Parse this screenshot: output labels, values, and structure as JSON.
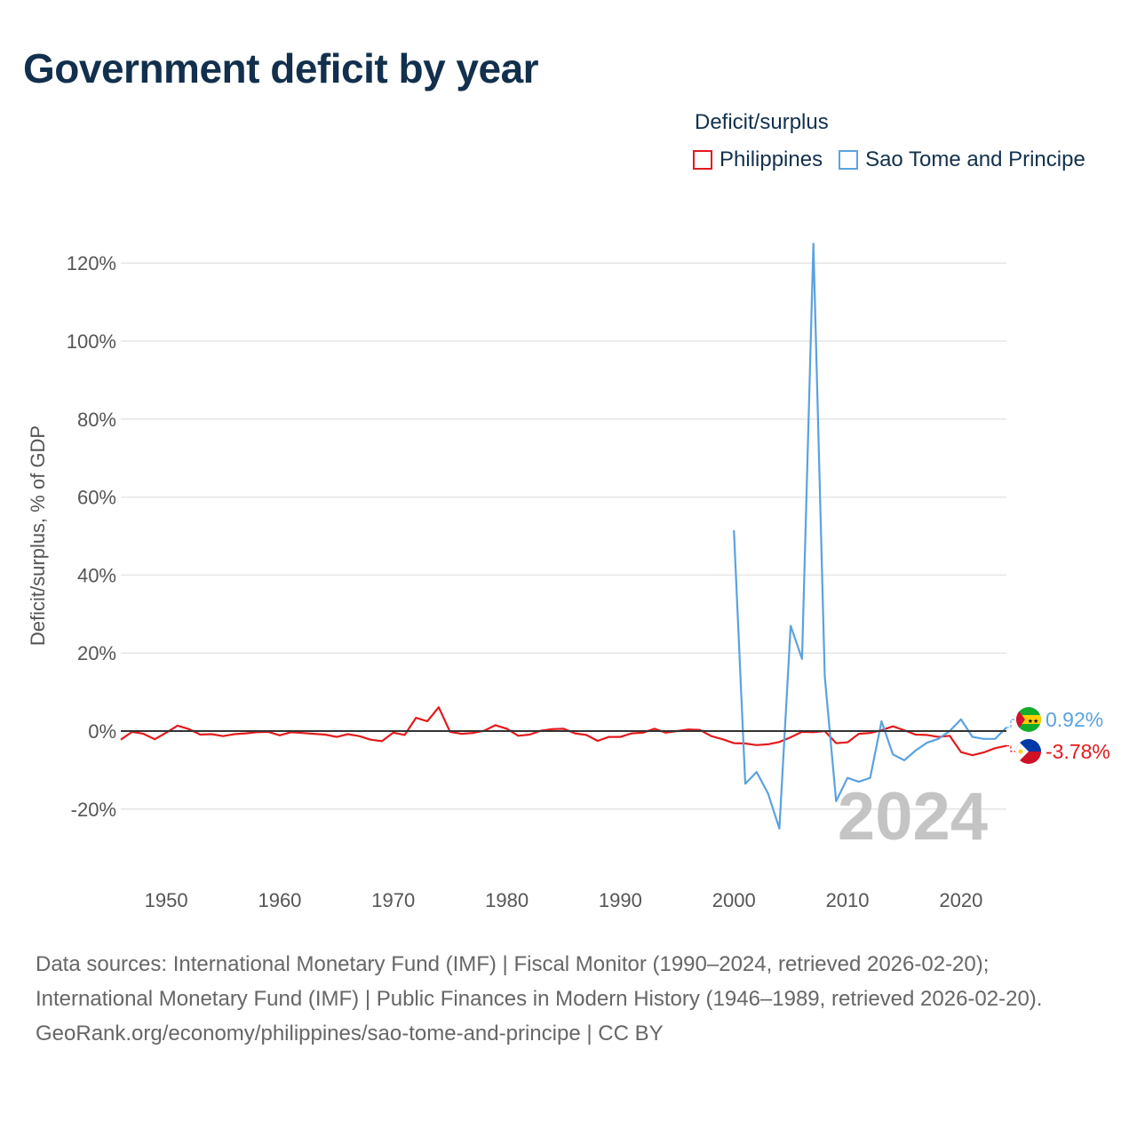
{
  "title": "Government deficit by year",
  "legend": {
    "title": "Deficit/surplus",
    "items": [
      {
        "name": "Philippines",
        "color": "#e31a1c"
      },
      {
        "name": "Sao Tome and Principe",
        "color": "#5aa2e0"
      }
    ]
  },
  "year_watermark": "2024",
  "footer": {
    "sources": "Data sources: International Monetary Fund (IMF) | Fiscal Monitor (1990–2024, retrieved 2026-02-20); International Monetary Fund (IMF) | Public Finances in Modern History (1946–1989, retrieved 2026-02-20).",
    "credit": "GeoRank.org/economy/philippines/sao-tome-and-principe | CC BY"
  },
  "chart_data": {
    "type": "line",
    "title": "Government deficit by year",
    "xlabel": "",
    "ylabel": "Deficit/surplus, % of GDP",
    "xlim": [
      1946,
      2024
    ],
    "ylim": [
      -30,
      130
    ],
    "x_ticks": [
      1950,
      1960,
      1970,
      1980,
      1990,
      2000,
      2010,
      2020
    ],
    "y_ticks": [
      -20,
      0,
      20,
      40,
      60,
      80,
      100,
      120
    ],
    "y_tick_labels": [
      "-20%",
      "0%",
      "20%",
      "40%",
      "60%",
      "80%",
      "100%",
      "120%"
    ],
    "grid": true,
    "series": [
      {
        "name": "Philippines",
        "color": "#e31a1c",
        "end_label": "-3.78%",
        "points": [
          [
            1946,
            -2.2
          ],
          [
            1947,
            -0.2
          ],
          [
            1948,
            -0.7
          ],
          [
            1949,
            -2.1
          ],
          [
            1950,
            -0.4
          ],
          [
            1951,
            1.4
          ],
          [
            1952,
            0.5
          ],
          [
            1953,
            -0.9
          ],
          [
            1954,
            -0.8
          ],
          [
            1955,
            -1.3
          ],
          [
            1956,
            -0.8
          ],
          [
            1957,
            -0.6
          ],
          [
            1958,
            -0.3
          ],
          [
            1959,
            -0.2
          ],
          [
            1960,
            -1.1
          ],
          [
            1961,
            -0.3
          ],
          [
            1962,
            -0.5
          ],
          [
            1963,
            -0.7
          ],
          [
            1964,
            -0.9
          ],
          [
            1965,
            -1.5
          ],
          [
            1966,
            -0.8
          ],
          [
            1967,
            -1.3
          ],
          [
            1968,
            -2.2
          ],
          [
            1969,
            -2.6
          ],
          [
            1970,
            -0.4
          ],
          [
            1971,
            -1.0
          ],
          [
            1972,
            3.4
          ],
          [
            1973,
            2.5
          ],
          [
            1974,
            6.1
          ],
          [
            1975,
            -0.2
          ],
          [
            1976,
            -0.7
          ],
          [
            1977,
            -0.5
          ],
          [
            1978,
            0.1
          ],
          [
            1979,
            1.5
          ],
          [
            1980,
            0.6
          ],
          [
            1981,
            -1.2
          ],
          [
            1982,
            -0.9
          ],
          [
            1983,
            0.1
          ],
          [
            1984,
            0.5
          ],
          [
            1985,
            0.6
          ],
          [
            1986,
            -0.6
          ],
          [
            1987,
            -1.0
          ],
          [
            1988,
            -2.5
          ],
          [
            1989,
            -1.5
          ],
          [
            1990,
            -1.5
          ],
          [
            1991,
            -0.6
          ],
          [
            1992,
            -0.4
          ],
          [
            1993,
            0.6
          ],
          [
            1994,
            -0.4
          ],
          [
            1995,
            0.0
          ],
          [
            1996,
            0.4
          ],
          [
            1997,
            0.3
          ],
          [
            1998,
            -1.3
          ],
          [
            1999,
            -2.1
          ],
          [
            2000,
            -3.1
          ],
          [
            2001,
            -3.2
          ],
          [
            2002,
            -3.6
          ],
          [
            2003,
            -3.4
          ],
          [
            2004,
            -2.8
          ],
          [
            2005,
            -1.6
          ],
          [
            2006,
            -0.2
          ],
          [
            2007,
            -0.3
          ],
          [
            2008,
            0.0
          ],
          [
            2009,
            -3.1
          ],
          [
            2010,
            -2.9
          ],
          [
            2011,
            -0.7
          ],
          [
            2012,
            -0.5
          ],
          [
            2013,
            0.2
          ],
          [
            2014,
            1.2
          ],
          [
            2015,
            0.2
          ],
          [
            2016,
            -0.9
          ],
          [
            2017,
            -1.0
          ],
          [
            2018,
            -1.5
          ],
          [
            2019,
            -1.2
          ],
          [
            2020,
            -5.4
          ],
          [
            2021,
            -6.2
          ],
          [
            2022,
            -5.5
          ],
          [
            2023,
            -4.4
          ],
          [
            2024,
            -3.78
          ]
        ]
      },
      {
        "name": "Sao Tome and Principe",
        "color": "#5aa2e0",
        "end_label": "0.92%",
        "points": [
          [
            2000,
            51.5
          ],
          [
            2001,
            -13.5
          ],
          [
            2002,
            -10.5
          ],
          [
            2003,
            -16.0
          ],
          [
            2004,
            -25.0
          ],
          [
            2005,
            27.0
          ],
          [
            2006,
            18.5
          ],
          [
            2007,
            125.0
          ],
          [
            2008,
            14.0
          ],
          [
            2009,
            -18.0
          ],
          [
            2010,
            -12.0
          ],
          [
            2011,
            -13.0
          ],
          [
            2012,
            -12.0
          ],
          [
            2013,
            2.5
          ],
          [
            2014,
            -6.0
          ],
          [
            2015,
            -7.5
          ],
          [
            2016,
            -5.0
          ],
          [
            2017,
            -3.0
          ],
          [
            2018,
            -2.0
          ],
          [
            2019,
            0.0
          ],
          [
            2020,
            3.0
          ],
          [
            2021,
            -1.5
          ],
          [
            2022,
            -2.0
          ],
          [
            2023,
            -2.0
          ],
          [
            2024,
            0.92
          ]
        ]
      }
    ]
  }
}
